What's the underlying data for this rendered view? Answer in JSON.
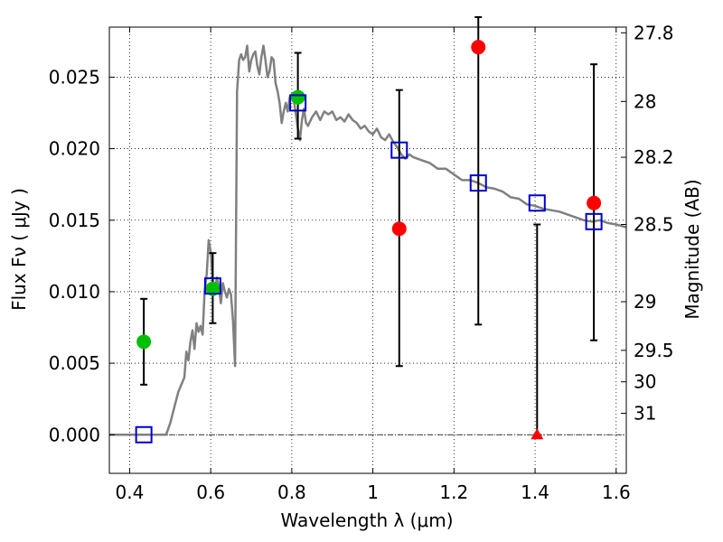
{
  "chart_data": {
    "type": "scatter",
    "xlabel": "Wavelength  λ (μm)",
    "ylabel": "Flux  Fν  ( μJy )",
    "ylabel_right": "Magnitude (AB)",
    "xlim": [
      0.35,
      1.625
    ],
    "ylim": [
      -0.0027,
      0.0285
    ],
    "grid": true,
    "x_ticks": [
      0.4,
      0.6,
      0.8,
      1.0,
      1.2,
      1.4,
      1.6
    ],
    "x_tick_labels": [
      "0.4",
      "0.6",
      "0.8",
      "1",
      "1.2",
      "1.4",
      "1.6"
    ],
    "y_ticks": [
      0.0,
      0.005,
      0.01,
      0.015,
      0.02,
      0.025
    ],
    "y_tick_labels": [
      "0.000",
      "0.005",
      "0.010",
      "0.015",
      "0.020",
      "0.025"
    ],
    "right_ticks": [
      {
        "label": "27.8",
        "flux": 0.0281
      },
      {
        "label": "28",
        "flux": 0.0233
      },
      {
        "label": "28.2",
        "flux": 0.0194
      },
      {
        "label": "28.5",
        "flux": 0.0147
      },
      {
        "label": "29",
        "flux": 0.0093
      },
      {
        "label": "29.5",
        "flux": 0.0059
      },
      {
        "label": "30",
        "flux": 0.0037
      },
      {
        "label": "31",
        "flux": 0.0015
      }
    ],
    "colors": {
      "sed": "#808080",
      "green": "#00bf00",
      "red": "#ff0000",
      "model": "#0000cc",
      "errorbar": "#000000",
      "zero_line": "#000000"
    },
    "sed": {
      "x": [
        0.35,
        0.48,
        0.49,
        0.5,
        0.52,
        0.535,
        0.54,
        0.545,
        0.55,
        0.555,
        0.56,
        0.565,
        0.57,
        0.575,
        0.58,
        0.585,
        0.59,
        0.595,
        0.6,
        0.605,
        0.61,
        0.615,
        0.62,
        0.625,
        0.63,
        0.635,
        0.64,
        0.645,
        0.65,
        0.655,
        0.66,
        0.665,
        0.67,
        0.675,
        0.68,
        0.685,
        0.69,
        0.695,
        0.7,
        0.705,
        0.71,
        0.715,
        0.72,
        0.725,
        0.73,
        0.735,
        0.74,
        0.745,
        0.75,
        0.755,
        0.76,
        0.765,
        0.77,
        0.775,
        0.78,
        0.785,
        0.79,
        0.795,
        0.8,
        0.805,
        0.81,
        0.815,
        0.82,
        0.825,
        0.83,
        0.835,
        0.84,
        0.85,
        0.86,
        0.87,
        0.88,
        0.89,
        0.9,
        0.91,
        0.92,
        0.93,
        0.94,
        0.95,
        0.96,
        0.97,
        0.98,
        0.99,
        1.0,
        1.01,
        1.02,
        1.03,
        1.04,
        1.05,
        1.06,
        1.07,
        1.08,
        1.09,
        1.1,
        1.12,
        1.14,
        1.16,
        1.18,
        1.2,
        1.22,
        1.24,
        1.26,
        1.28,
        1.3,
        1.32,
        1.34,
        1.36,
        1.38,
        1.4,
        1.42,
        1.44,
        1.46,
        1.48,
        1.5,
        1.52,
        1.54,
        1.56,
        1.58,
        1.6,
        1.625
      ],
      "y": [
        0.0,
        0.0,
        0.0,
        0.0008,
        0.003,
        0.004,
        0.0058,
        0.0052,
        0.0065,
        0.0073,
        0.006,
        0.0078,
        0.0072,
        0.0076,
        0.007,
        0.01,
        0.0112,
        0.0136,
        0.0128,
        0.0108,
        0.0098,
        0.011,
        0.0104,
        0.0092,
        0.0106,
        0.01,
        0.0096,
        0.0102,
        0.0098,
        0.008,
        0.0048,
        0.024,
        0.0262,
        0.0266,
        0.0262,
        0.0264,
        0.0272,
        0.0254,
        0.0262,
        0.0266,
        0.0268,
        0.0258,
        0.0252,
        0.0264,
        0.0272,
        0.0262,
        0.025,
        0.0254,
        0.0264,
        0.0262,
        0.0246,
        0.024,
        0.0232,
        0.0218,
        0.0226,
        0.0232,
        0.0226,
        0.0236,
        0.0238,
        0.0234,
        0.0224,
        0.0214,
        0.0206,
        0.022,
        0.0228,
        0.0218,
        0.0216,
        0.0222,
        0.0226,
        0.022,
        0.0226,
        0.0224,
        0.0226,
        0.022,
        0.0222,
        0.0219,
        0.0224,
        0.022,
        0.0218,
        0.0214,
        0.0216,
        0.0212,
        0.021,
        0.0214,
        0.0208,
        0.0206,
        0.021,
        0.0205,
        0.0201,
        0.0196,
        0.0193,
        0.0196,
        0.0194,
        0.0192,
        0.019,
        0.0186,
        0.0186,
        0.0182,
        0.0178,
        0.0178,
        0.0176,
        0.0173,
        0.0172,
        0.017,
        0.0166,
        0.0165,
        0.0161,
        0.016,
        0.0158,
        0.0157,
        0.0156,
        0.0154,
        0.0152,
        0.015,
        0.0149,
        0.015,
        0.0148,
        0.0147,
        0.0145
      ]
    },
    "zero_line": 0.0,
    "model_squares": {
      "x": [
        0.435,
        0.605,
        0.815,
        1.065,
        1.26,
        1.405,
        1.545
      ],
      "y": [
        0.0,
        0.0104,
        0.0232,
        0.0199,
        0.0176,
        0.0162,
        0.0149
      ]
    },
    "observations": [
      {
        "x": 0.435,
        "y": 0.0065,
        "err_low": 0.0035,
        "err_high": 0.0095,
        "color": "green",
        "marker": "circle"
      },
      {
        "x": 0.605,
        "y": 0.0102,
        "err_low": 0.0078,
        "err_high": 0.0127,
        "color": "green",
        "marker": "circle"
      },
      {
        "x": 0.815,
        "y": 0.0236,
        "err_low": 0.0207,
        "err_high": 0.0267,
        "color": "green",
        "marker": "circle"
      },
      {
        "x": 1.065,
        "y": 0.0144,
        "err_low": 0.0048,
        "err_high": 0.0241,
        "color": "red",
        "marker": "circle"
      },
      {
        "x": 1.26,
        "y": 0.0271,
        "err_low": 0.0077,
        "err_high": 0.0292,
        "color": "red",
        "marker": "circle"
      },
      {
        "x": 1.405,
        "y": 0.0,
        "err_low": 0.0,
        "err_high": 0.0147,
        "color": "red",
        "marker": "triangle"
      },
      {
        "x": 1.545,
        "y": 0.0162,
        "err_low": 0.0066,
        "err_high": 0.0259,
        "color": "red",
        "marker": "circle"
      }
    ]
  }
}
